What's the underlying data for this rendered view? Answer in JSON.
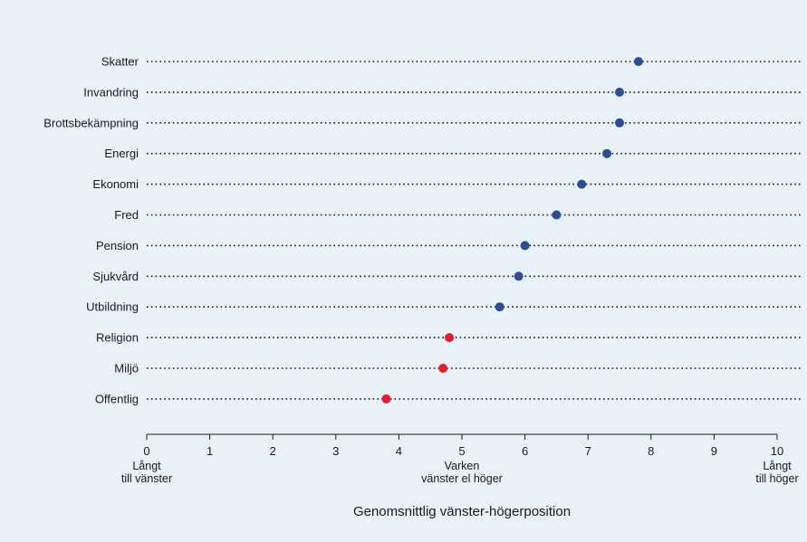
{
  "chart_data": {
    "type": "scatter",
    "title": "",
    "xlabel": "Genomsnittlig vänster-högerposition",
    "ylabel": "",
    "xlim": [
      0,
      10
    ],
    "xticks": [
      0,
      1,
      2,
      3,
      4,
      5,
      6,
      7,
      8,
      9,
      10
    ],
    "x_anchor_labels": [
      {
        "x": 0,
        "lines": [
          "Långt",
          "till vänster"
        ]
      },
      {
        "x": 5,
        "lines": [
          "Varken",
          "vänster el höger"
        ]
      },
      {
        "x": 10,
        "lines": [
          "Långt",
          "till höger"
        ]
      }
    ],
    "colors": {
      "right": "#2b4c9b",
      "left": "#e0202a",
      "background": "#e9f2f8"
    },
    "points": [
      {
        "category": "Skatter",
        "x": 7.8,
        "side": "right"
      },
      {
        "category": "Invandring",
        "x": 7.5,
        "side": "right"
      },
      {
        "category": "Brottsbekämpning",
        "x": 7.5,
        "side": "right"
      },
      {
        "category": "Energi",
        "x": 7.3,
        "side": "right"
      },
      {
        "category": "Ekonomi",
        "x": 6.9,
        "side": "right"
      },
      {
        "category": "Fred",
        "x": 6.5,
        "side": "right"
      },
      {
        "category": "Pension",
        "x": 6.0,
        "side": "right"
      },
      {
        "category": "Sjukvård",
        "x": 5.9,
        "side": "right"
      },
      {
        "category": "Utbildning",
        "x": 5.6,
        "side": "right"
      },
      {
        "category": "Religion",
        "x": 4.8,
        "side": "left"
      },
      {
        "category": "Miljö",
        "x": 4.7,
        "side": "left"
      },
      {
        "category": "Offentlig",
        "x": 3.8,
        "side": "left"
      }
    ]
  }
}
